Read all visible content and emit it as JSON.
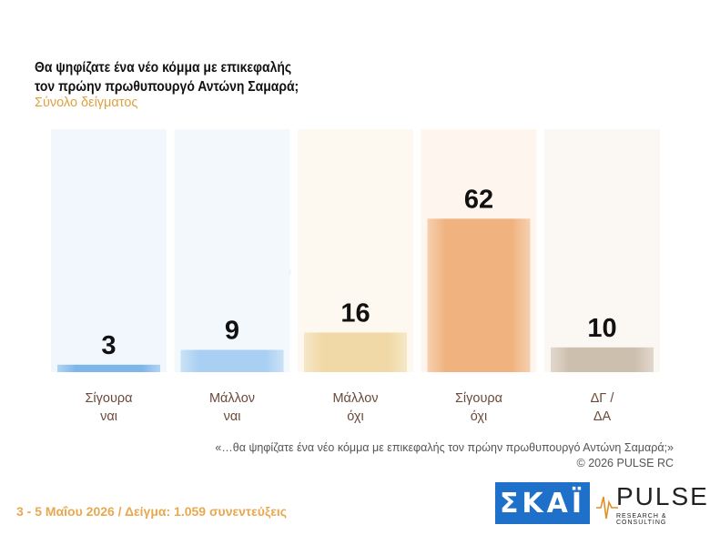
{
  "header": {
    "title_line1": "Θα ψηφίζατε ένα νέο κόμμα με επικεφαλής",
    "title_line2": "τον πρώην πρωθυπουργό Αντώνη Σαμαρά;",
    "subtitle": "Σύνολο δείγματος"
  },
  "chart_data": {
    "type": "bar",
    "categories": [
      [
        "Σίγουρα",
        "ναι"
      ],
      [
        "Μάλλον",
        "ναι"
      ],
      [
        "Μάλλον",
        "όχι"
      ],
      [
        "Σίγουρα",
        "όχι"
      ],
      [
        "ΔΓ /",
        "ΔΑ"
      ]
    ],
    "values": [
      3,
      9,
      16,
      62,
      10
    ],
    "ylim": [
      0,
      100
    ],
    "grid": false,
    "legend": "none",
    "colors": [
      "#7eb6ea",
      "#a9cff2",
      "#f0d9a6",
      "#f0b27e",
      "#cdbfae"
    ],
    "column_bg_colors": [
      "#f1f7fd",
      "#f3f8fd",
      "#fdf9f0",
      "#fdf5ee",
      "#fbf8f4"
    ]
  },
  "watermark": {
    "text": "PULSE",
    "sub": "RESEARCH & CONSULTING"
  },
  "footnote": {
    "question": "«…θα ψηφίζατε ένα νέο κόμμα με επικεφαλής τον πρώην πρωθυπουργό Αντώνη Σαμαρά;»",
    "copyright": "©  2026  PULSE RC"
  },
  "footer": {
    "survey_info": "3 - 5  Μαΐου 2026  /  Δείγμα:  1.059 συνεντεύξεις"
  },
  "logos": {
    "skai": "ΣΚΑΪ",
    "pulse": "PULSE",
    "pulse_sub": "RESEARCH & CONSULTING"
  }
}
